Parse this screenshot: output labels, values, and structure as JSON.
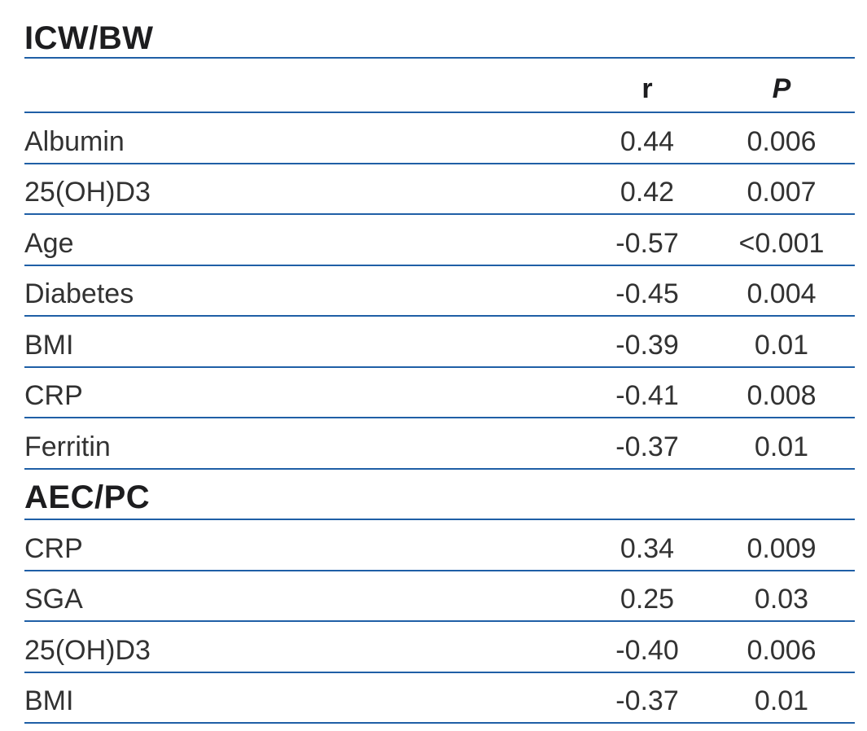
{
  "table": {
    "columns": {
      "r": "r",
      "p": "P"
    },
    "sections": [
      {
        "title": "ICW/BW",
        "rows": [
          {
            "label": "Albumin",
            "r": "0.44",
            "p": "0.006"
          },
          {
            "label": "25(OH)D3",
            "r": "0.42",
            "p": "0.007"
          },
          {
            "label": "Age",
            "r": "-0.57",
            "p": "<0.001"
          },
          {
            "label": "Diabetes",
            "r": "-0.45",
            "p": "0.004"
          },
          {
            "label": "BMI",
            "r": "-0.39",
            "p": "0.01"
          },
          {
            "label": "CRP",
            "r": "-0.41",
            "p": "0.008"
          },
          {
            "label": "Ferritin",
            "r": "-0.37",
            "p": "0.01"
          }
        ]
      },
      {
        "title": "AEC/PC",
        "rows": [
          {
            "label": "CRP",
            "r": "0.34",
            "p": "0.009"
          },
          {
            "label": "SGA",
            "r": "0.25",
            "p": "0.03"
          },
          {
            "label": "25(OH)D3",
            "r": "-0.40",
            "p": "0.006"
          },
          {
            "label": "BMI",
            "r": "-0.37",
            "p": "0.01"
          }
        ]
      }
    ]
  },
  "colors": {
    "rule": "#1f5fa6",
    "heading_text": "#1d1d1f",
    "body_text": "#323232"
  }
}
